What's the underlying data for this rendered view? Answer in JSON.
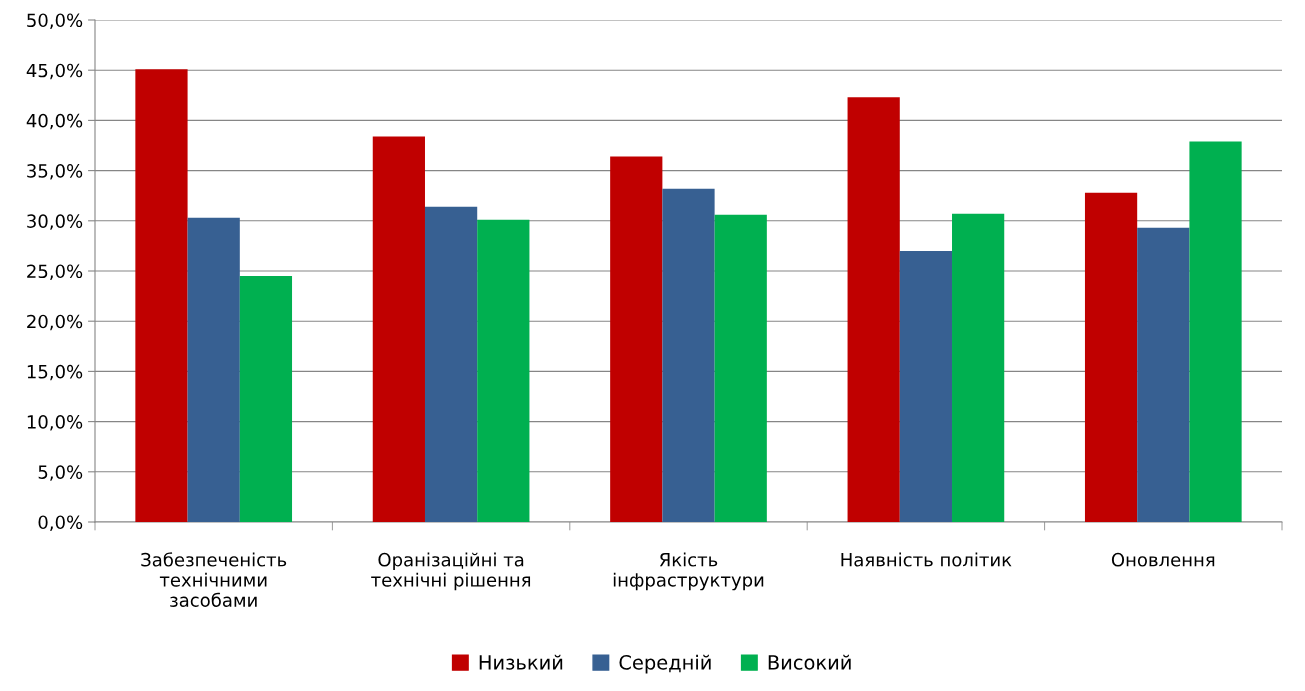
{
  "chart_data": {
    "type": "bar",
    "categories": [
      "Забезпеченість\nтехнічними\nзасобами",
      "Оранізаційні та\nтехнічні рішення",
      "Якість\nінфраструктури",
      "Наявність політик",
      "Оновлення"
    ],
    "series": [
      {
        "name": "Низький",
        "color": "#c00000",
        "values": [
          45.1,
          38.4,
          36.4,
          42.3,
          32.8
        ]
      },
      {
        "name": "Середній",
        "color": "#376092",
        "values": [
          30.3,
          31.4,
          33.2,
          27.0,
          29.3
        ]
      },
      {
        "name": "Високий",
        "color": "#00b050",
        "values": [
          24.5,
          30.1,
          30.6,
          30.7,
          37.9
        ]
      }
    ],
    "ylim": [
      0,
      50
    ],
    "yticks": [
      {
        "value": 0,
        "label": "0,0%"
      },
      {
        "value": 5,
        "label": "5,0%"
      },
      {
        "value": 10,
        "label": "10,0%"
      },
      {
        "value": 15,
        "label": "15,0%"
      },
      {
        "value": 20,
        "label": "20,0%"
      },
      {
        "value": 25,
        "label": "25,0%"
      },
      {
        "value": 30,
        "label": "30,0%"
      },
      {
        "value": 35,
        "label": "35,0%"
      },
      {
        "value": 40,
        "label": "40,0%"
      },
      {
        "value": 45,
        "label": "45,0%"
      },
      {
        "value": 50,
        "label": "50,0%"
      }
    ],
    "grid": "y",
    "legend": "bottom"
  }
}
